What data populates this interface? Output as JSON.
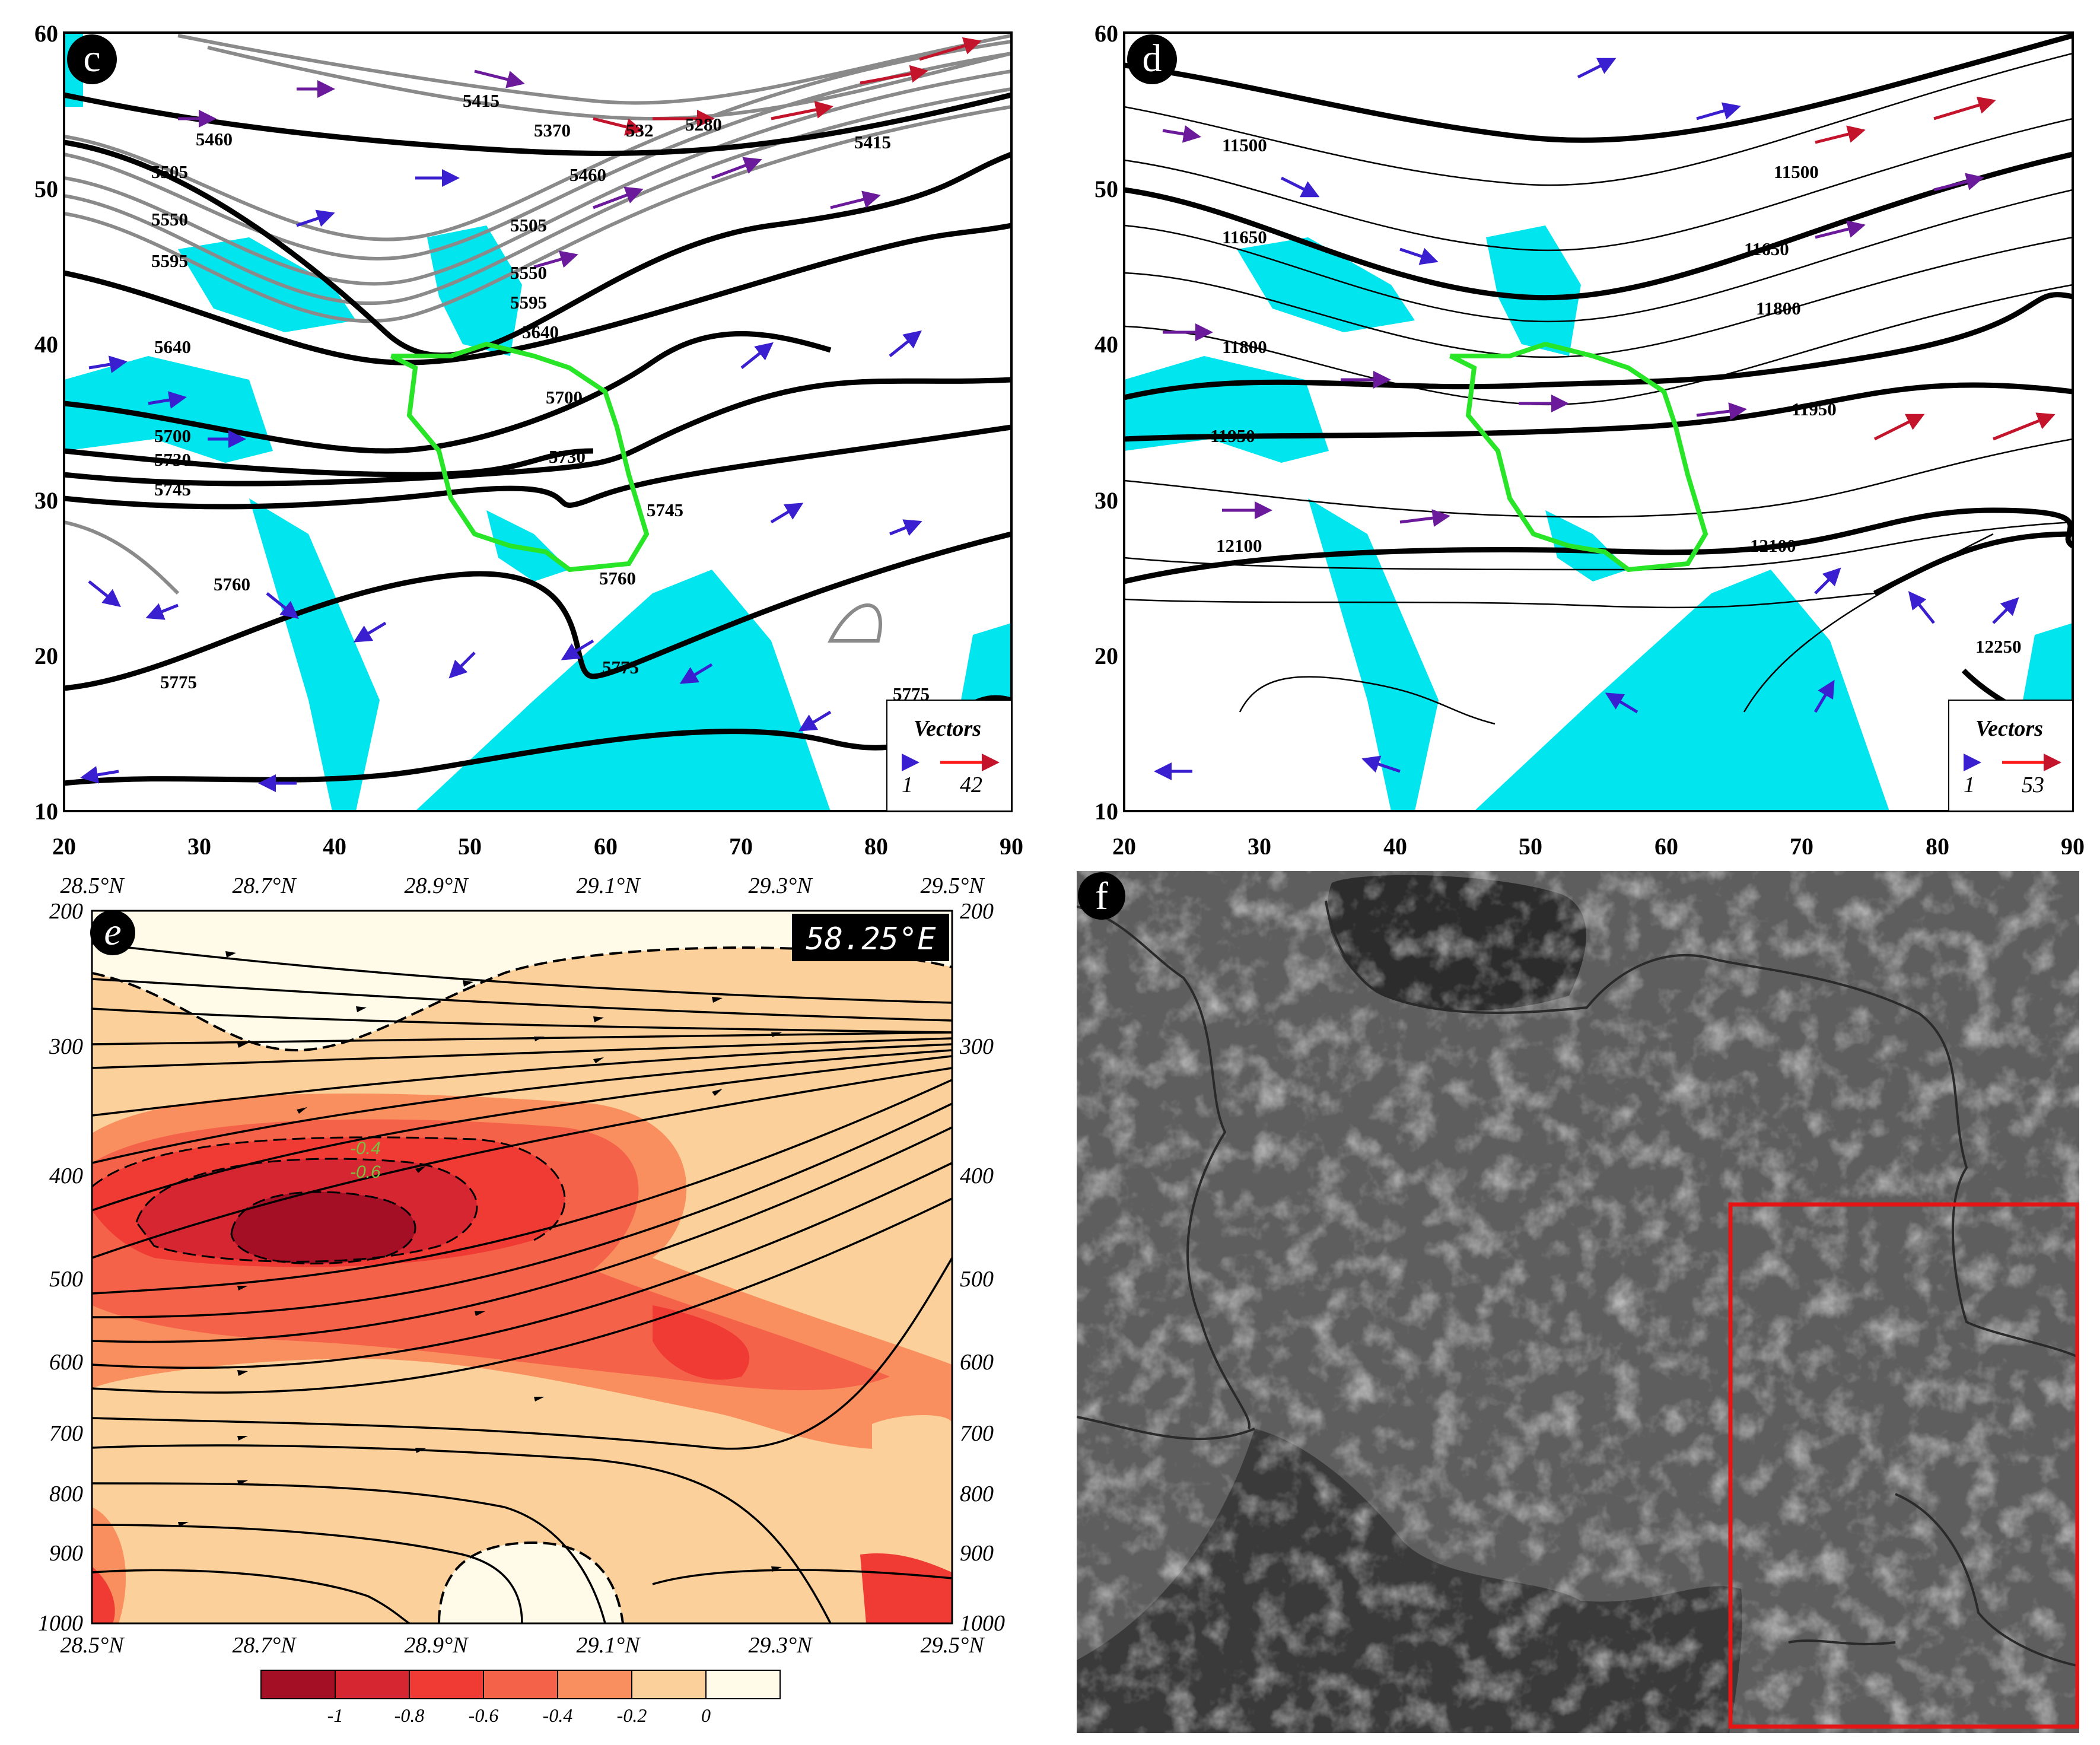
{
  "panels": {
    "c": {
      "letter": "c",
      "x_ticks": [
        "20",
        "30",
        "40",
        "50",
        "60",
        "70",
        "80",
        "90"
      ],
      "y_ticks": [
        "60",
        "50",
        "40",
        "30",
        "20",
        "10"
      ],
      "contour_labels": [
        "5460",
        "5415",
        "5370",
        "532",
        "5280",
        "5415",
        "5460",
        "5505",
        "5550",
        "5595",
        "5505",
        "5550",
        "5595",
        "5640",
        "5640",
        "5700",
        "5700",
        "5730",
        "5730",
        "5745",
        "5745",
        "5760",
        "5760",
        "5775",
        "5775",
        "5775"
      ],
      "legend": {
        "title": "Vectors",
        "small": "1",
        "large": "42"
      }
    },
    "d": {
      "letter": "d",
      "x_ticks": [
        "20",
        "30",
        "40",
        "50",
        "60",
        "70",
        "80",
        "90"
      ],
      "y_ticks": [
        "60",
        "50",
        "40",
        "30",
        "20",
        "10"
      ],
      "contour_labels": [
        "11500",
        "11500",
        "11650",
        "11650",
        "11800",
        "11800",
        "11950",
        "11950",
        "12100",
        "12100",
        "12250"
      ],
      "legend": {
        "title": "Vectors",
        "small": "1",
        "large": "53"
      }
    },
    "e": {
      "letter": "e",
      "longitude_label": "58.25°E",
      "lat_ticks": [
        "28.5°N",
        "28.7°N",
        "28.9°N",
        "29.1°N",
        "29.3°N",
        "29.5°N"
      ],
      "p_ticks": [
        "200",
        "300",
        "400",
        "500",
        "600",
        "700",
        "800",
        "900",
        "1000"
      ],
      "inline_labels": [
        "-0.4",
        "-0.6"
      ],
      "colorbar": {
        "colors": [
          "#a50f26",
          "#d62632",
          "#f03b34",
          "#f5624a",
          "#f98f5e",
          "#fbd09b",
          "#fffbe8"
        ],
        "labels": [
          "-1",
          "-0.8",
          "-0.6",
          "-0.4",
          "-0.2",
          "0"
        ]
      }
    },
    "f": {
      "letter": "f"
    }
  }
}
